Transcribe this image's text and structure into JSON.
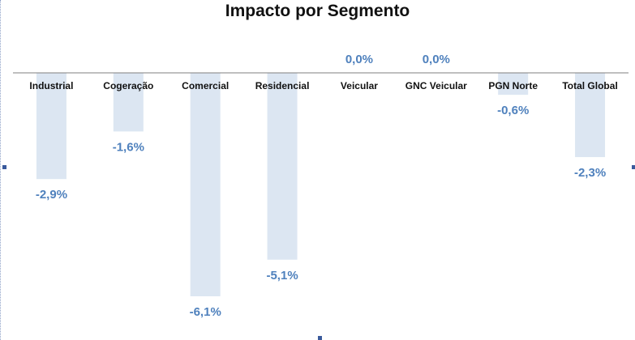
{
  "chart_data": {
    "type": "bar",
    "title": "Impacto por Segmento",
    "categories": [
      "Industrial",
      "Cogeração",
      "Comercial",
      "Residencial",
      "Veicular",
      "GNC Veicular",
      "PGN Norte",
      "Total Global"
    ],
    "values": [
      -2.9,
      -1.6,
      -6.1,
      -5.1,
      0.0,
      0.0,
      -0.6,
      -2.3
    ],
    "value_labels": [
      "-2,9%",
      "-1,6%",
      "-6,1%",
      "-5,1%",
      "0,0%",
      "0,0%",
      "-0,6%",
      "-2,3%"
    ],
    "ylim": [
      -6.1,
      0
    ],
    "unit": "%",
    "grid": false,
    "legend": "none",
    "colors": {
      "bar": "#dce6f2",
      "value_label": "#4f81bd",
      "axis": "#7f7f7f"
    }
  }
}
